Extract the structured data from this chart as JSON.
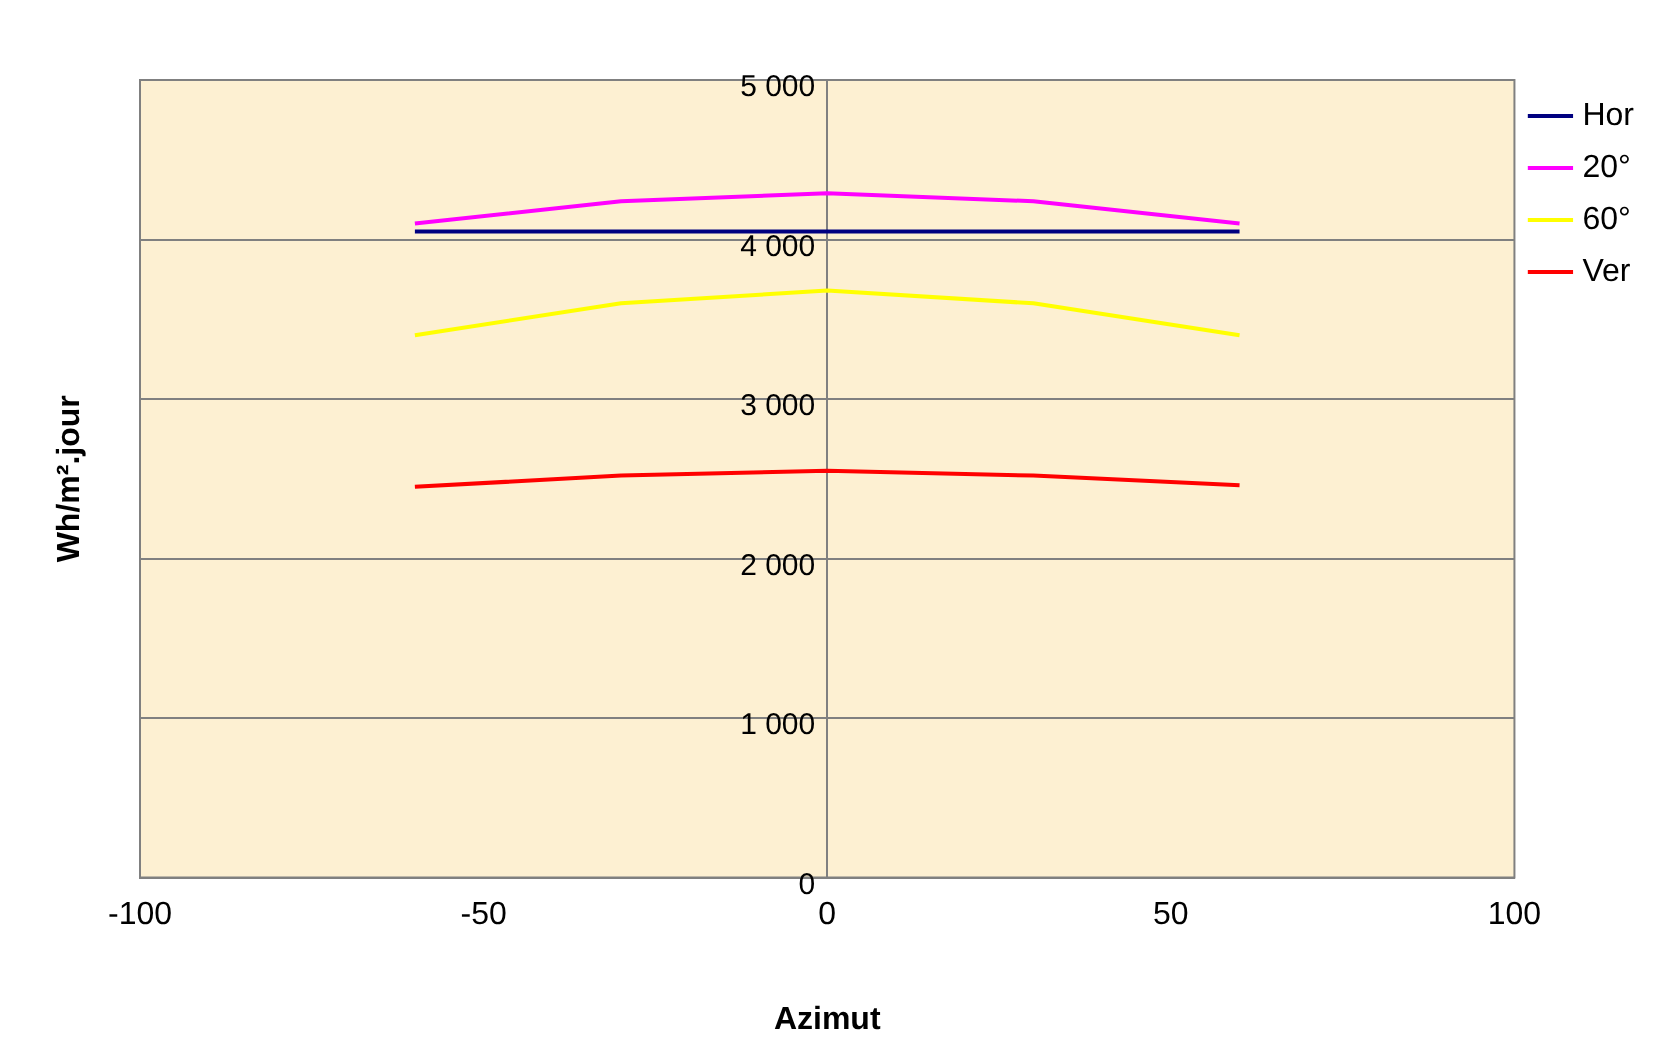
{
  "chart_data": {
    "type": "line",
    "xlabel": "Azimut",
    "ylabel": "Wh/m².jour",
    "x": [
      -60,
      -30,
      0,
      30,
      60
    ],
    "series": [
      {
        "name": "Hor",
        "color": "#000080",
        "values": [
          4050,
          4050,
          4050,
          4050,
          4050
        ]
      },
      {
        "name": "20°",
        "color": "#ff00ff",
        "values": [
          4100,
          4240,
          4290,
          4240,
          4100
        ]
      },
      {
        "name": "60°",
        "color": "#ffff00",
        "values": [
          3400,
          3600,
          3680,
          3600,
          3400
        ]
      },
      {
        "name": "Ver",
        "color": "#ff0000",
        "values": [
          2450,
          2520,
          2550,
          2520,
          2460
        ]
      }
    ],
    "xlim": [
      -100,
      100
    ],
    "xticks": [
      -100,
      -50,
      0,
      50,
      100
    ],
    "ylim": [
      0,
      5000
    ],
    "yticks": [
      {
        "value": 0,
        "label": "0"
      },
      {
        "value": 1000,
        "label": "1 000"
      },
      {
        "value": 2000,
        "label": "2 000"
      },
      {
        "value": 3000,
        "label": "3 000"
      },
      {
        "value": 4000,
        "label": "4 000"
      },
      {
        "value": 5000,
        "label": "5 000"
      }
    ],
    "grid": "y",
    "legend": "top right",
    "marker": "none",
    "line_style": "solid"
  }
}
